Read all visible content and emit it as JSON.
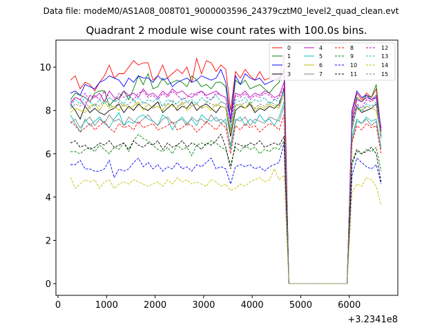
{
  "chart_data": {
    "type": "line",
    "suptitle": "Data file: modeM0/AS1A08_008T01_9000003596_24379cztM0_level2_quad_clean.evt",
    "title": "Quadrant 2 module wise count rates with 100.0s bins.",
    "xlabel": "",
    "ylabel": "",
    "x_offset_label": "+3.2341e8",
    "x_start": 256,
    "x_step": 100,
    "xlim": [
      -43,
      7000
    ],
    "ylim": [
      -0.54,
      11.25
    ],
    "xticks": [
      "0",
      "1000",
      "2000",
      "3000",
      "4000",
      "5000",
      "6000"
    ],
    "xtick_values": [
      0,
      1000,
      2000,
      3000,
      4000,
      5000,
      6000
    ],
    "yticks": [
      "0",
      "2",
      "4",
      "6",
      "8",
      "10"
    ],
    "ytick_values": [
      0,
      2,
      4,
      6,
      8,
      10
    ],
    "grid": false,
    "legend_placement": "top-right",
    "series": [
      {
        "name": "0",
        "color": "#ff0000",
        "dash": false,
        "values": [
          9.4,
          9.6,
          9.0,
          9.3,
          9.2,
          8.9,
          9.3,
          9.6,
          10.1,
          9.5,
          9.7,
          9.7,
          10.0,
          10.3,
          10.1,
          10.2,
          10.2,
          9.4,
          9.6,
          10.1,
          9.5,
          9.7,
          9.9,
          9.7,
          10.0,
          9.3,
          10.4,
          9.7,
          10.3,
          10.2,
          9.8,
          10.1,
          9.9,
          8.0,
          9.8,
          9.5,
          9.9,
          9.6,
          9.4,
          9.8,
          9.4,
          9.5,
          9.7,
          9.4,
          10.6,
          0,
          0,
          0,
          0,
          0,
          0,
          0,
          0,
          0,
          0,
          0,
          0,
          0,
          7.8,
          8.8,
          8.5,
          8.8,
          8.6,
          9.0,
          7.0
        ]
      },
      {
        "name": "1",
        "color": "#008000",
        "dash": false,
        "values": [
          8.5,
          8.8,
          8.7,
          8.6,
          8.4,
          8.8,
          8.9,
          8.9,
          8.2,
          8.5,
          8.6,
          8.9,
          8.5,
          9.0,
          9.6,
          9.2,
          9.7,
          9.0,
          9.1,
          9.5,
          9.2,
          9.3,
          9.4,
          9.3,
          9.1,
          9.6,
          9.4,
          9.1,
          9.2,
          9.0,
          9.3,
          9.3,
          9.1,
          7.5,
          9.4,
          9.2,
          9.4,
          9.0,
          9.1,
          9.2,
          9.0,
          8.8,
          9.1,
          9.3,
          9.9,
          0,
          0,
          0,
          0,
          0,
          0,
          0,
          0,
          0,
          0,
          0,
          0,
          0,
          7.5,
          8.6,
          8.4,
          8.7,
          8.6,
          9.2,
          7.0
        ]
      },
      {
        "name": "2",
        "color": "#0000ff",
        "dash": false,
        "values": [
          8.8,
          8.9,
          8.7,
          9.2,
          9.1,
          9.0,
          9.3,
          9.4,
          9.6,
          9.5,
          9.4,
          9.1,
          9.5,
          9.3,
          9.6,
          9.5,
          9.5,
          9.3,
          9.6,
          9.4,
          9.5,
          9.1,
          9.3,
          9.4,
          9.5,
          9.3,
          9.4,
          9.6,
          9.5,
          9.4,
          9.5,
          9.9,
          9.3,
          7.6,
          9.6,
          9.2,
          9.7,
          9.5,
          9.4,
          9.5,
          9.2,
          9.3,
          9.4,
          9.5,
          9.8,
          0,
          0,
          0,
          0,
          0,
          0,
          0,
          0,
          0,
          0,
          0,
          0,
          0,
          8.0,
          8.9,
          8.6,
          8.7,
          8.5,
          8.6,
          7.2
        ]
      },
      {
        "name": "3",
        "color": "#000000",
        "dash": false,
        "values": [
          8.3,
          8.0,
          7.6,
          8.2,
          7.9,
          8.1,
          7.9,
          7.8,
          8.0,
          8.1,
          8.3,
          7.9,
          8.2,
          8.0,
          8.3,
          8.1,
          8.0,
          8.2,
          8.4,
          7.9,
          8.1,
          8.3,
          8.0,
          8.2,
          8.1,
          8.4,
          8.0,
          8.2,
          8.3,
          8.1,
          7.9,
          8.2,
          8.1,
          6.8,
          8.0,
          8.2,
          8.1,
          8.3,
          7.9,
          8.1,
          8.0,
          8.2,
          8.1,
          8.3,
          9.0,
          0,
          0,
          0,
          0,
          0,
          0,
          0,
          0,
          0,
          0,
          0,
          0,
          0,
          7.2,
          8.2,
          7.9,
          8.0,
          8.1,
          8.3,
          6.8
        ]
      },
      {
        "name": "4",
        "color": "#bf00bf",
        "dash": false,
        "values": [
          8.3,
          8.6,
          8.5,
          8.2,
          8.7,
          8.6,
          8.8,
          8.4,
          8.9,
          8.6,
          8.5,
          8.9,
          8.7,
          8.8,
          8.6,
          9.0,
          8.7,
          8.8,
          8.6,
          8.9,
          8.7,
          9.0,
          8.8,
          8.9,
          8.7,
          8.6,
          8.8,
          8.9,
          8.7,
          8.8,
          8.9,
          8.7,
          8.6,
          7.6,
          8.8,
          8.7,
          8.9,
          8.6,
          8.8,
          8.7,
          8.9,
          8.8,
          8.6,
          8.7,
          9.3,
          0,
          0,
          0,
          0,
          0,
          0,
          0,
          0,
          0,
          0,
          0,
          0,
          0,
          7.6,
          8.5,
          8.4,
          8.6,
          8.5,
          8.7,
          7.1
        ]
      },
      {
        "name": "5",
        "color": "#00bfbf",
        "dash": false,
        "values": [
          7.8,
          7.4,
          7.0,
          7.6,
          7.3,
          7.5,
          7.7,
          7.4,
          7.2,
          7.6,
          7.9,
          7.3,
          7.5,
          7.4,
          7.7,
          7.8,
          7.6,
          7.5,
          7.3,
          7.8,
          7.6,
          7.1,
          7.5,
          7.7,
          7.4,
          7.6,
          7.3,
          7.8,
          7.6,
          7.5,
          7.7,
          7.4,
          7.6,
          6.2,
          7.5,
          7.7,
          7.3,
          7.6,
          7.4,
          7.8,
          7.5,
          7.6,
          7.3,
          7.7,
          8.4,
          0,
          0,
          0,
          0,
          0,
          0,
          0,
          0,
          0,
          0,
          0,
          0,
          0,
          6.8,
          7.6,
          7.4,
          7.7,
          7.5,
          7.6,
          6.3
        ]
      },
      {
        "name": "6",
        "color": "#bfbf00",
        "dash": false,
        "values": [
          7.9,
          8.1,
          8.0,
          7.9,
          8.2,
          8.3,
          8.0,
          8.4,
          8.1,
          8.2,
          8.0,
          8.3,
          8.1,
          8.2,
          8.4,
          8.0,
          8.3,
          8.1,
          8.2,
          8.0,
          8.3,
          8.2,
          8.1,
          8.4,
          8.0,
          8.2,
          8.3,
          8.1,
          8.2,
          8.0,
          8.3,
          8.2,
          8.1,
          7.0,
          8.2,
          8.3,
          8.1,
          8.4,
          8.0,
          8.2,
          8.1,
          8.3,
          8.2,
          8.1,
          8.8,
          0,
          0,
          0,
          0,
          0,
          0,
          0,
          0,
          0,
          0,
          0,
          0,
          0,
          7.3,
          8.1,
          8.0,
          8.2,
          8.1,
          8.0,
          6.9
        ]
      },
      {
        "name": "7",
        "color": "#808080",
        "dash": false,
        "values": [
          7.4,
          7.6,
          7.2,
          7.5,
          7.7,
          7.3,
          7.6,
          7.4,
          7.8,
          7.5,
          7.6,
          7.3,
          7.7,
          7.5,
          7.4,
          7.6,
          7.8,
          7.5,
          7.3,
          7.6,
          7.7,
          7.4,
          7.5,
          7.6,
          7.3,
          7.7,
          7.5,
          7.6,
          7.4,
          7.8,
          7.5,
          7.6,
          7.4,
          6.4,
          7.6,
          7.5,
          7.7,
          7.3,
          7.6,
          7.5,
          7.4,
          7.7,
          7.6,
          7.5,
          8.2,
          0,
          0,
          0,
          0,
          0,
          0,
          0,
          0,
          0,
          0,
          0,
          0,
          0,
          6.6,
          7.5,
          7.4,
          7.6,
          7.3,
          7.5,
          6.2
        ]
      },
      {
        "name": "8",
        "color": "#ff0000",
        "dash": true,
        "values": [
          7.5,
          7.3,
          7.0,
          7.2,
          7.4,
          7.1,
          7.3,
          7.5,
          7.2,
          7.0,
          7.4,
          7.2,
          7.3,
          7.1,
          7.5,
          7.2,
          7.3,
          7.4,
          7.1,
          7.2,
          7.3,
          7.5,
          7.1,
          7.2,
          7.4,
          7.3,
          7.0,
          7.2,
          7.5,
          7.3,
          7.1,
          7.4,
          7.2,
          6.0,
          7.3,
          7.1,
          7.4,
          7.2,
          7.3,
          7.0,
          7.2,
          7.4,
          7.3,
          7.1,
          7.8,
          0,
          0,
          0,
          0,
          0,
          0,
          0,
          0,
          0,
          0,
          0,
          0,
          0,
          6.5,
          7.3,
          7.1,
          7.4,
          7.2,
          7.3,
          6.0
        ]
      },
      {
        "name": "9",
        "color": "#008000",
        "dash": true,
        "values": [
          6.1,
          6.1,
          6.0,
          6.2,
          6.3,
          6.1,
          6.4,
          6.2,
          6.0,
          6.3,
          6.2,
          6.5,
          6.1,
          6.6,
          6.9,
          6.7,
          6.6,
          6.4,
          6.2,
          6.1,
          6.3,
          6.0,
          6.4,
          6.2,
          6.3,
          5.9,
          6.4,
          6.5,
          6.4,
          6.6,
          6.5,
          6.3,
          6.2,
          5.5,
          6.3,
          6.1,
          6.4,
          6.2,
          6.3,
          6.0,
          6.2,
          6.1,
          6.3,
          6.2,
          6.6,
          0,
          0,
          0,
          0,
          0,
          0,
          0,
          0,
          0,
          0,
          0,
          0,
          0,
          5.5,
          6.1,
          6.0,
          6.2,
          6.1,
          6.3,
          5.2
        ]
      },
      {
        "name": "10",
        "color": "#0000ff",
        "dash": true,
        "values": [
          5.5,
          5.5,
          5.7,
          5.3,
          5.3,
          5.2,
          5.2,
          5.3,
          5.7,
          4.9,
          5.3,
          5.2,
          5.3,
          5.6,
          5.8,
          5.4,
          5.6,
          5.3,
          5.5,
          5.2,
          5.4,
          5.3,
          5.6,
          5.3,
          5.4,
          5.2,
          5.5,
          5.4,
          5.6,
          5.8,
          5.3,
          5.4,
          5.3,
          4.6,
          5.4,
          5.5,
          5.4,
          5.5,
          5.3,
          5.4,
          5.2,
          5.4,
          5.5,
          5.6,
          6.5,
          0,
          0,
          0,
          0,
          0,
          0,
          0,
          0,
          0,
          0,
          0,
          0,
          0,
          5.0,
          5.8,
          5.6,
          5.4,
          5.3,
          5.5,
          4.6
        ]
      },
      {
        "name": "11",
        "color": "#000000",
        "dash": true,
        "values": [
          6.5,
          6.6,
          6.3,
          6.4,
          6.2,
          6.3,
          6.5,
          6.4,
          6.6,
          6.3,
          6.4,
          6.5,
          6.2,
          6.6,
          6.4,
          6.3,
          6.5,
          6.4,
          6.6,
          6.2,
          6.5,
          6.3,
          6.4,
          6.6,
          6.3,
          6.5,
          6.4,
          6.2,
          6.5,
          6.4,
          6.6,
          6.9,
          6.3,
          5.3,
          6.5,
          6.4,
          6.3,
          6.5,
          6.4,
          6.6,
          6.3,
          6.4,
          6.5,
          6.4,
          6.8,
          0,
          0,
          0,
          0,
          0,
          0,
          0,
          0,
          0,
          0,
          0,
          0,
          0,
          5.6,
          6.2,
          6.0,
          6.1,
          6.3,
          6.0,
          4.7
        ]
      },
      {
        "name": "12",
        "color": "#bf00bf",
        "dash": true,
        "values": [
          8.4,
          8.6,
          8.5,
          8.8,
          8.4,
          8.7,
          8.5,
          8.9,
          8.6,
          8.4,
          8.8,
          8.6,
          8.7,
          8.5,
          8.8,
          8.9,
          8.6,
          8.7,
          8.5,
          8.8,
          8.6,
          8.9,
          8.7,
          8.5,
          8.6,
          8.8,
          8.7,
          8.9,
          8.6,
          8.5,
          8.8,
          8.7,
          8.6,
          7.4,
          8.7,
          8.6,
          8.8,
          8.5,
          8.7,
          8.6,
          8.8,
          8.7,
          8.5,
          8.6,
          9.1,
          0,
          0,
          0,
          0,
          0,
          0,
          0,
          0,
          0,
          0,
          0,
          0,
          0,
          7.4,
          8.3,
          8.1,
          8.5,
          8.4,
          8.6,
          7.0
        ]
      },
      {
        "name": "13",
        "color": "#00bfbf",
        "dash": true,
        "values": [
          8.2,
          8.5,
          8.3,
          8.6,
          8.4,
          8.2,
          8.5,
          8.3,
          8.6,
          8.4,
          8.5,
          8.3,
          8.7,
          8.4,
          8.6,
          8.3,
          8.5,
          8.4,
          8.6,
          8.2,
          8.5,
          8.4,
          8.3,
          8.6,
          8.4,
          8.5,
          8.3,
          8.6,
          8.4,
          8.5,
          8.7,
          8.4,
          8.3,
          7.2,
          8.5,
          8.4,
          8.6,
          8.3,
          8.5,
          8.4,
          8.6,
          8.3,
          8.5,
          8.4,
          8.9,
          0,
          0,
          0,
          0,
          0,
          0,
          0,
          0,
          0,
          0,
          0,
          0,
          0,
          7.2,
          8.2,
          8.0,
          8.3,
          8.2,
          8.4,
          6.8
        ]
      },
      {
        "name": "14",
        "color": "#bfbf00",
        "dash": true,
        "values": [
          4.9,
          4.4,
          4.6,
          4.8,
          4.7,
          4.8,
          4.4,
          4.7,
          4.8,
          4.4,
          4.6,
          4.7,
          4.6,
          4.8,
          4.7,
          4.6,
          4.5,
          4.6,
          4.7,
          4.5,
          4.8,
          4.6,
          4.9,
          4.7,
          4.8,
          4.6,
          4.7,
          4.6,
          4.5,
          4.8,
          4.7,
          4.5,
          4.6,
          4.3,
          4.4,
          4.6,
          4.5,
          4.7,
          4.8,
          4.9,
          4.7,
          4.8,
          5.3,
          4.8,
          5.0,
          0,
          0,
          0,
          0,
          0,
          0,
          0,
          0,
          0,
          0,
          0,
          0,
          0,
          4.2,
          4.6,
          4.5,
          4.9,
          4.8,
          4.5,
          3.6
        ]
      },
      {
        "name": "15",
        "color": "#808080",
        "dash": true,
        "values": [
          8.1,
          8.3,
          8.2,
          8.4,
          8.1,
          8.3,
          8.2,
          8.5,
          8.3,
          8.1,
          8.4,
          8.2,
          8.3,
          8.5,
          8.2,
          8.4,
          8.3,
          8.1,
          8.4,
          8.2,
          8.3,
          8.5,
          8.2,
          8.3,
          8.4,
          8.2,
          8.3,
          8.1,
          8.4,
          8.3,
          8.2,
          8.4,
          8.3,
          7.1,
          8.3,
          8.2,
          8.4,
          8.3,
          8.1,
          8.3,
          8.2,
          8.4,
          8.3,
          8.2,
          8.8,
          0,
          0,
          0,
          0,
          0,
          0,
          0,
          0,
          0,
          0,
          0,
          0,
          0,
          7.1,
          8.1,
          7.9,
          8.2,
          8.1,
          8.3,
          6.7
        ]
      }
    ]
  }
}
